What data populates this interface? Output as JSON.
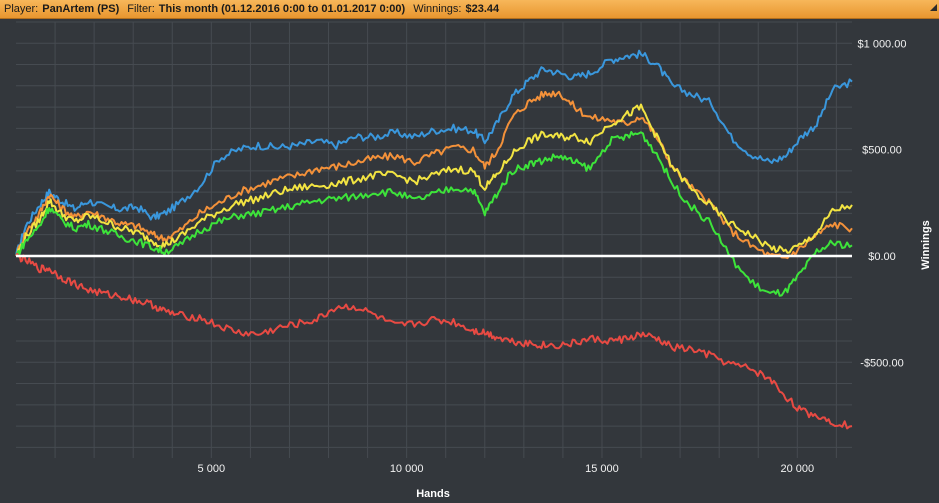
{
  "header": {
    "player_label": "Player:",
    "player_value": "PanArtem (PS)",
    "filter_label": "Filter:",
    "filter_value": "This month (01.12.2016 0:00 to 01.01.2017 0:00)",
    "winnings_label": "Winnings:",
    "winnings_value": "$23.44"
  },
  "colors": {
    "background": "#33373c",
    "grid": "#464b51",
    "zero_line": "#ffffff",
    "header": "#efa444"
  },
  "chart_data": {
    "type": "line",
    "xlabel": "Hands",
    "ylabel": "Winnings",
    "xlim": [
      0,
      21400
    ],
    "ylim": [
      -950,
      1100
    ],
    "x_ticks": [
      5000,
      10000,
      15000,
      20000
    ],
    "x_tick_labels": [
      "5 000",
      "10 000",
      "15 000",
      "20 000"
    ],
    "y_ticks": [
      1000,
      500,
      0,
      -500
    ],
    "y_tick_labels": [
      "$1 000.00",
      "$500.00",
      "$0.00",
      "-$500.00"
    ],
    "grid": true,
    "legend": "none",
    "x": [
      0,
      250,
      600,
      850,
      1150,
      1500,
      1850,
      2300,
      2700,
      3100,
      3500,
      3800,
      4200,
      4700,
      5200,
      5700,
      6200,
      6700,
      7200,
      7700,
      8200,
      8700,
      9200,
      9700,
      10200,
      10700,
      11200,
      11700,
      12000,
      12300,
      12700,
      13100,
      13500,
      13900,
      14300,
      14700,
      15200,
      15600,
      16000,
      16400,
      16800,
      17300,
      17800,
      18300,
      18800,
      19300,
      19700,
      20100,
      20500,
      20900,
      21400
    ],
    "series": [
      {
        "color": "#3a97dc",
        "values": [
          0,
          140,
          240,
          300,
          260,
          220,
          260,
          230,
          220,
          230,
          180,
          200,
          250,
          330,
          460,
          500,
          520,
          510,
          520,
          540,
          520,
          560,
          560,
          580,
          560,
          590,
          600,
          590,
          540,
          620,
          750,
          820,
          880,
          860,
          840,
          860,
          920,
          940,
          950,
          900,
          800,
          760,
          720,
          560,
          480,
          440,
          470,
          560,
          620,
          780,
          820
        ]
      },
      {
        "color": "#f3913a",
        "values": [
          0,
          110,
          200,
          290,
          230,
          180,
          210,
          180,
          150,
          140,
          100,
          80,
          120,
          200,
          250,
          300,
          330,
          360,
          380,
          410,
          420,
          440,
          460,
          470,
          440,
          480,
          510,
          500,
          420,
          490,
          650,
          720,
          760,
          770,
          700,
          650,
          640,
          620,
          660,
          560,
          420,
          320,
          240,
          120,
          50,
          0,
          -10,
          40,
          100,
          150,
          130
        ]
      },
      {
        "color": "#f2e442",
        "values": [
          0,
          90,
          170,
          260,
          200,
          160,
          190,
          160,
          130,
          110,
          70,
          50,
          90,
          160,
          210,
          250,
          270,
          300,
          320,
          330,
          340,
          360,
          380,
          380,
          350,
          380,
          410,
          400,
          320,
          380,
          480,
          540,
          570,
          560,
          560,
          540,
          620,
          660,
          700,
          560,
          420,
          310,
          230,
          150,
          100,
          40,
          20,
          50,
          110,
          210,
          240
        ]
      },
      {
        "color": "#3de33a",
        "values": [
          0,
          70,
          140,
          230,
          170,
          130,
          150,
          120,
          90,
          70,
          40,
          20,
          50,
          120,
          160,
          190,
          200,
          220,
          240,
          260,
          270,
          280,
          300,
          300,
          260,
          290,
          320,
          310,
          200,
          290,
          400,
          430,
          450,
          470,
          440,
          410,
          540,
          560,
          580,
          480,
          340,
          230,
          150,
          -10,
          -120,
          -180,
          -170,
          -80,
          20,
          60,
          50
        ]
      },
      {
        "color": "#e84a43",
        "values": [
          0,
          -20,
          -60,
          -60,
          -100,
          -130,
          -160,
          -180,
          -190,
          -210,
          -230,
          -260,
          -280,
          -290,
          -330,
          -360,
          -370,
          -340,
          -320,
          -300,
          -240,
          -240,
          -280,
          -330,
          -320,
          -300,
          -310,
          -350,
          -360,
          -380,
          -400,
          -410,
          -420,
          -420,
          -410,
          -390,
          -400,
          -390,
          -370,
          -390,
          -430,
          -440,
          -470,
          -510,
          -530,
          -580,
          -660,
          -730,
          -750,
          -780,
          -800
        ]
      }
    ]
  }
}
